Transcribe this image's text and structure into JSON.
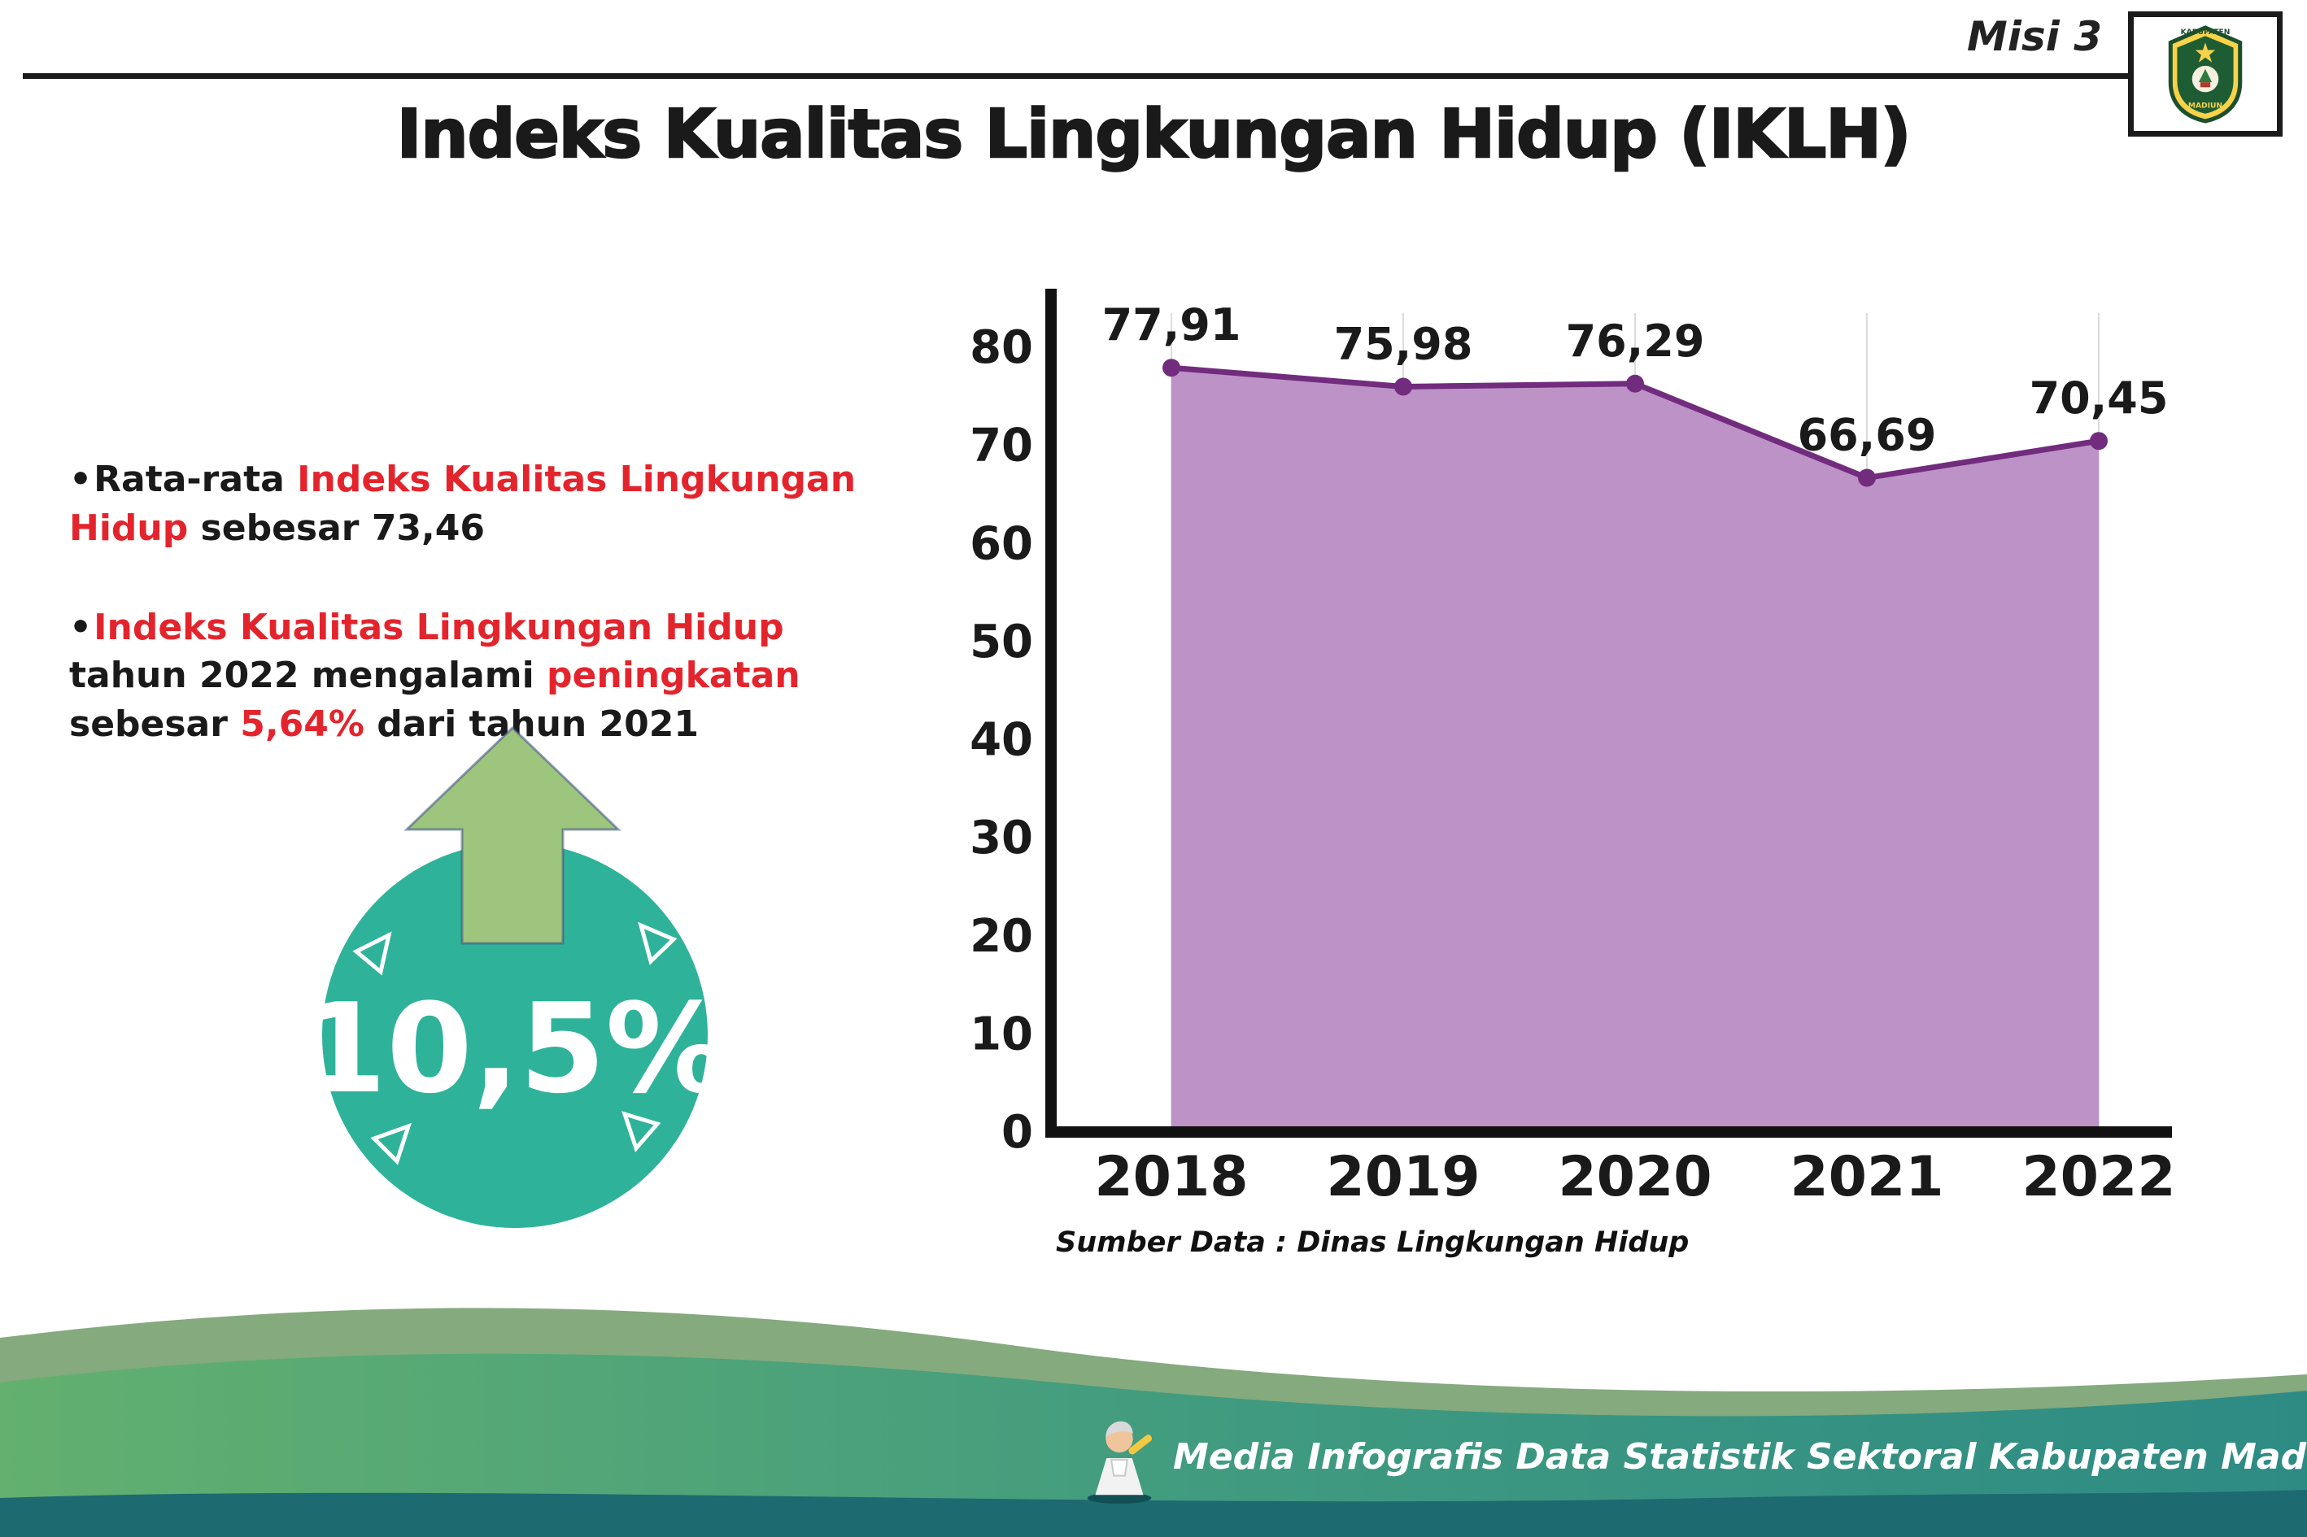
{
  "palette": {
    "ink": "#1a1a1a",
    "red": "#e4242c",
    "teal": "#2eb39a",
    "arrow_green": "#9dc57d",
    "arrow_outline": "#3a4f87",
    "footer_dark_teal": "#1d6a70",
    "footer_sage": "#84aa7e"
  },
  "header": {
    "misi": "Misi 3",
    "title": "Indeks Kualitas Lingkungan Hidup (IKLH)",
    "logo_top": "KABUPATEN",
    "logo_bottom": "MADIUN"
  },
  "bullets": [
    {
      "segments": [
        {
          "t": "Rata-rata ",
          "c": "dark"
        },
        {
          "t": "Indeks Kualitas Lingkungan Hidup",
          "c": "red"
        },
        {
          "t": " sebesar 73,46",
          "c": "dark"
        }
      ]
    },
    {
      "segments": [
        {
          "t": "Indeks Kualitas Lingkungan Hidup",
          "c": "red"
        },
        {
          "t": " tahun 2022 mengalami ",
          "c": "dark"
        },
        {
          "t": "peningkatan",
          "c": "red"
        },
        {
          "t": " sebesar ",
          "c": "dark"
        },
        {
          "t": "5,64%",
          "c": "red"
        },
        {
          "t": " dari tahun 2021",
          "c": "dark"
        }
      ]
    }
  ],
  "badge": {
    "value": "10,5%",
    "direction": "up"
  },
  "chart_data": {
    "type": "area",
    "categories": [
      "2018",
      "2019",
      "2020",
      "2021",
      "2022"
    ],
    "values": [
      77.91,
      75.98,
      76.29,
      66.69,
      70.45
    ],
    "value_labels": [
      "77,91",
      "75,98",
      "76,29",
      "66,69",
      "70,45"
    ],
    "ylim": [
      0,
      80
    ],
    "yticks": [
      0,
      10,
      20,
      30,
      40,
      50,
      60,
      70,
      80
    ],
    "grid": "vertical-light",
    "legend": "none",
    "title": "",
    "xlabel": "",
    "ylabel": "",
    "source": "Sumber Data : Dinas Lingkungan Hidup",
    "colors": {
      "line": "#722c7e",
      "fill": "#bd93c7",
      "point": "#722c7e",
      "axis": "#111111",
      "grid": "#dcdcdc",
      "label": "#1a1a1a"
    }
  },
  "footer": {
    "text": "Media Infografis Data Statistik Sektoral Kabupaten Madiun |"
  }
}
